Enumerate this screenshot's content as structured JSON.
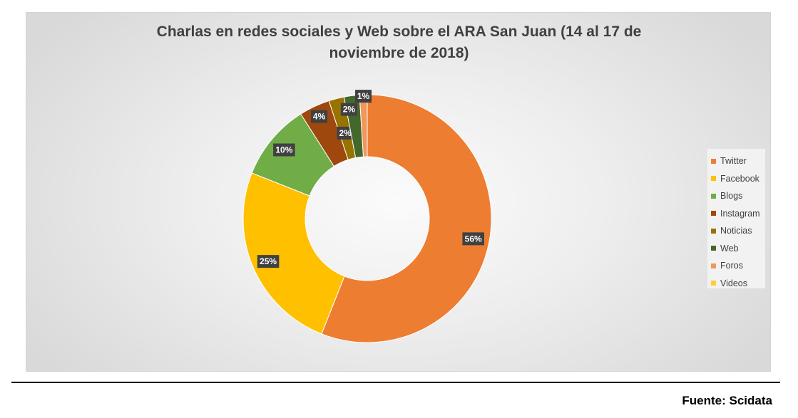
{
  "source": "Fuente: Scidata",
  "chart_data": {
    "type": "pie",
    "subtype": "donut",
    "title": "Charlas en redes sociales y Web sobre el ARA San Juan (14 al 17 de noviembre de 2018)",
    "legend_position": "right",
    "slices": [
      {
        "label": "Twitter",
        "value": 56,
        "display": "56%",
        "color": "#ED7D31"
      },
      {
        "label": "Facebook",
        "value": 25,
        "display": "25%",
        "color": "#FFC000"
      },
      {
        "label": "Blogs",
        "value": 10,
        "display": "10%",
        "color": "#70AD47"
      },
      {
        "label": "Instagram",
        "value": 4,
        "display": "4%",
        "color": "#9E480E"
      },
      {
        "label": "Noticias",
        "value": 2,
        "display": "2%",
        "color": "#997300"
      },
      {
        "label": "Web",
        "value": 2,
        "display": "2%",
        "color": "#43682B"
      },
      {
        "label": "Foros",
        "value": 1,
        "display": "1%",
        "color": "#F1975A"
      },
      {
        "label": "Videos",
        "value": 0,
        "display": "",
        "color": "#FFCD33"
      }
    ]
  }
}
